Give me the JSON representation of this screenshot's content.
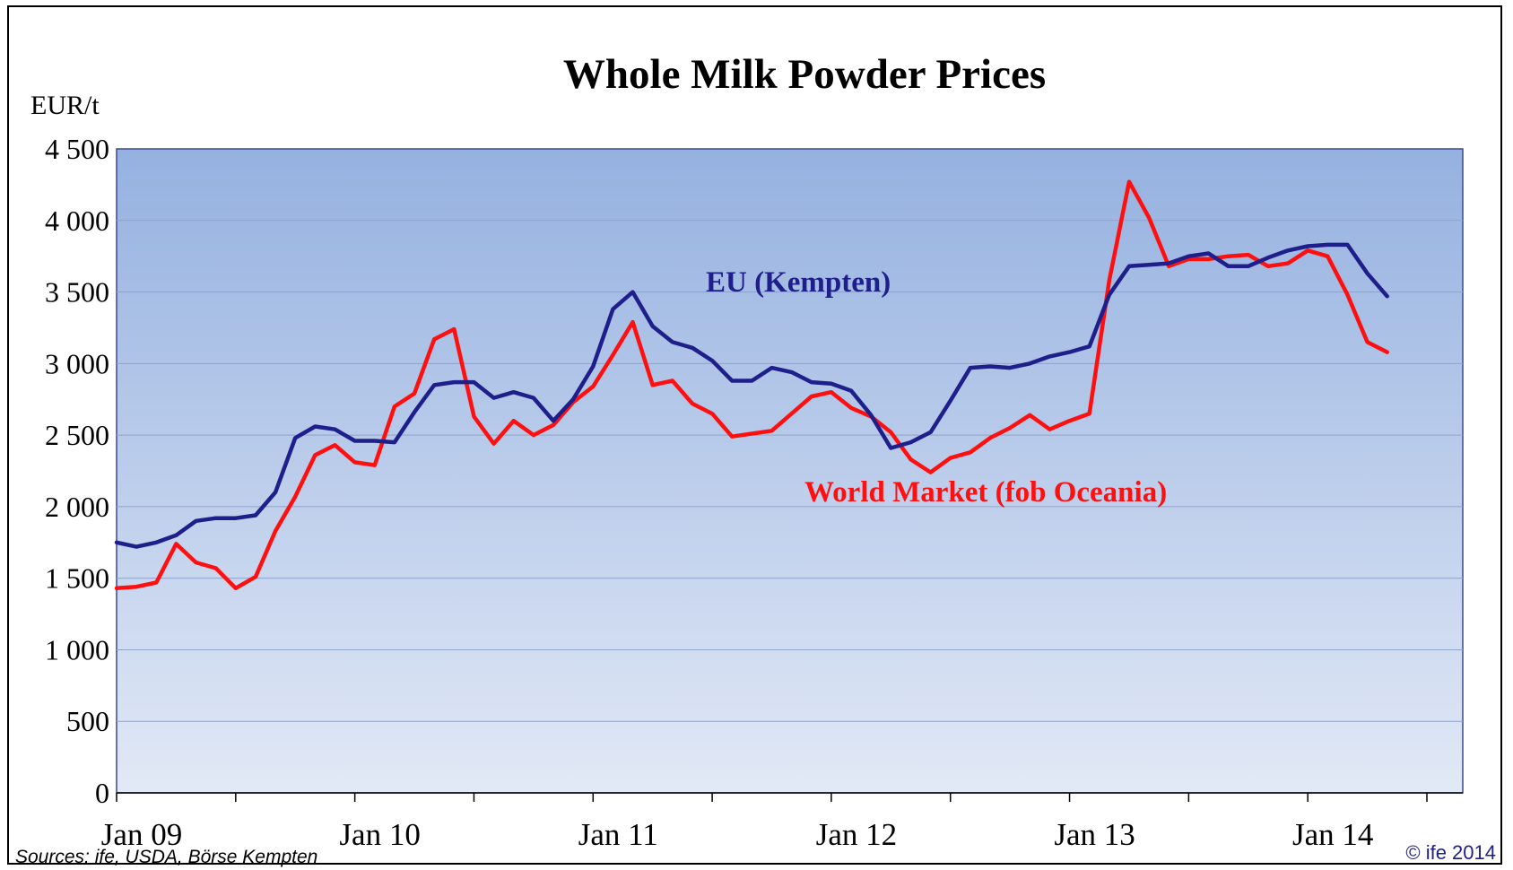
{
  "chart_data": {
    "type": "line",
    "title": "Whole Milk Powder Prices",
    "ylabel": "EUR/t",
    "xlabel": "",
    "ylim": [
      0,
      4500
    ],
    "yticks": [
      0,
      500,
      1000,
      1500,
      2000,
      2500,
      3000,
      3500,
      4000,
      4500
    ],
    "ytick_labels": [
      "0",
      "500",
      "1 000",
      "1 500",
      "2 000",
      "2 500",
      "3 000",
      "3 500",
      "4 000",
      "4 500"
    ],
    "x_start": "Jan 09",
    "x_end": "Jul 14",
    "x_ticks": [
      "Jan 09",
      "Jan 10",
      "Jan 11",
      "Jan 12",
      "Jan 13",
      "Jan 14"
    ],
    "grid": true,
    "x": [
      "Jan 09",
      "Feb 09",
      "Mar 09",
      "Apr 09",
      "May 09",
      "Jun 09",
      "Jul 09",
      "Aug 09",
      "Sep 09",
      "Oct 09",
      "Nov 09",
      "Dec 09",
      "Jan 10",
      "Feb 10",
      "Mar 10",
      "Apr 10",
      "May 10",
      "Jun 10",
      "Jul 10",
      "Aug 10",
      "Sep 10",
      "Oct 10",
      "Nov 10",
      "Dec 10",
      "Jan 11",
      "Feb 11",
      "Mar 11",
      "Apr 11",
      "May 11",
      "Jun 11",
      "Jul 11",
      "Aug 11",
      "Sep 11",
      "Oct 11",
      "Nov 11",
      "Dec 11",
      "Jan 12",
      "Feb 12",
      "Mar 12",
      "Apr 12",
      "May 12",
      "Jun 12",
      "Jul 12",
      "Aug 12",
      "Sep 12",
      "Oct 12",
      "Nov 12",
      "Dec 12",
      "Jan 13",
      "Feb 13",
      "Mar 13",
      "Apr 13",
      "May 13",
      "Jun 13",
      "Jul 13",
      "Aug 13",
      "Sep 13",
      "Oct 13",
      "Nov 13",
      "Dec 13",
      "Jan 14",
      "Feb 14",
      "Mar 14",
      "Apr 14",
      "May 14"
    ],
    "series": [
      {
        "name": "EU (Kempten)",
        "color": "#1f1f8c",
        "values": [
          1750,
          1720,
          1750,
          1800,
          1900,
          1920,
          1920,
          1940,
          2100,
          2480,
          2560,
          2540,
          2460,
          2460,
          2450,
          2660,
          2850,
          2870,
          2870,
          2760,
          2800,
          2760,
          2600,
          2750,
          2980,
          3380,
          3500,
          3260,
          3150,
          3110,
          3020,
          2880,
          2880,
          2970,
          2940,
          2870,
          2860,
          2810,
          2640,
          2410,
          2450,
          2520,
          2740,
          2970,
          2980,
          2970,
          3000,
          3050,
          3080,
          3120,
          3480,
          3680,
          3690,
          3700,
          3750,
          3770,
          3680,
          3680,
          3740,
          3790,
          3820,
          3830,
          3830,
          3630,
          3470
        ]
      },
      {
        "name": "World Market (fob Oceania)",
        "color": "#ff1010",
        "values": [
          1430,
          1440,
          1470,
          1740,
          1610,
          1570,
          1430,
          1510,
          1830,
          2070,
          2360,
          2430,
          2310,
          2290,
          2700,
          2790,
          3170,
          3240,
          2630,
          2440,
          2600,
          2500,
          2570,
          2730,
          2840,
          3060,
          3290,
          2850,
          2880,
          2720,
          2650,
          2490,
          2510,
          2530,
          2650,
          2770,
          2800,
          2690,
          2630,
          2520,
          2330,
          2240,
          2340,
          2380,
          2480,
          2550,
          2640,
          2540,
          2600,
          2650,
          3580,
          4270,
          4020,
          3680,
          3730,
          3730,
          3750,
          3760,
          3680,
          3700,
          3790,
          3750,
          3480,
          3150,
          3080
        ]
      }
    ],
    "annotations": [
      "EU (Kempten)",
      "World Market (fob Oceania)"
    ]
  },
  "footer": {
    "sources": "Sources: ife, USDA, Börse  Kempten",
    "copyright": "© ife 2014"
  }
}
